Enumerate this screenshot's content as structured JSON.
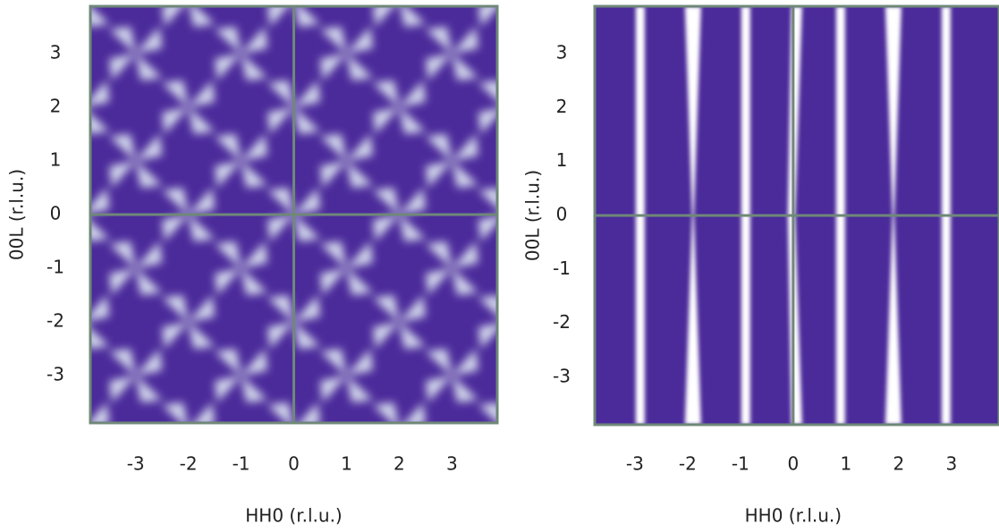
{
  "chart_data": [
    {
      "type": "map",
      "x_label": "HH0 (r.l.u.)",
      "y_label": "00L (r.l.u.)",
      "xlim": [
        -3.86,
        3.86
      ],
      "ylim": [
        -3.88,
        3.88
      ],
      "xticks": [
        -3,
        -2,
        -1,
        0,
        1,
        2,
        3
      ],
      "yticks": [
        -3,
        -2,
        -1,
        0,
        1,
        2,
        3
      ],
      "pattern": "stars",
      "color": "#4b2a9a",
      "highlight": "#e4eef6",
      "axis_color": "#6f8878"
    },
    {
      "type": "map",
      "x_label": "HH0 (r.l.u.)",
      "y_label": "00L (r.l.u.)",
      "xlim": [
        -3.76,
        3.9
      ],
      "ylim": [
        -3.88,
        3.88
      ],
      "xticks": [
        -3,
        -2,
        -1,
        0,
        1,
        2,
        3
      ],
      "yticks": [
        -3,
        -2,
        -1,
        0,
        1,
        2,
        3
      ],
      "pattern": "stripes",
      "color": "#4b2a9a",
      "highlight": "#ffffff",
      "axis_color": "#6f8878"
    }
  ]
}
